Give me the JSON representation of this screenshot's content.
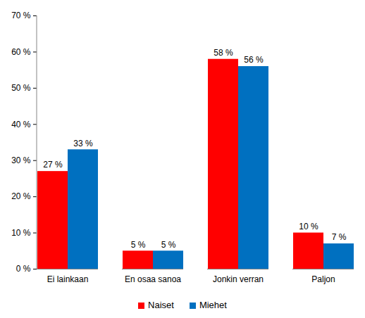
{
  "chart_data": {
    "type": "bar",
    "categories": [
      "Ei lainkaan",
      "En osaa sanoa",
      "Jonkin verran",
      "Paljon"
    ],
    "series": [
      {
        "name": "Naiset",
        "color": "#ff0000",
        "values": [
          27,
          5,
          58,
          10
        ],
        "value_labels": [
          "27 %",
          "5 %",
          "58 %",
          "10 %"
        ]
      },
      {
        "name": "Miehet",
        "color": "#0070c0",
        "values": [
          33,
          5,
          56,
          7
        ],
        "value_labels": [
          "33 %",
          "5 %",
          "56 %",
          "7 %"
        ]
      }
    ],
    "ylim": [
      0,
      70
    ],
    "yticks": [
      {
        "value": 0,
        "label": "0 %"
      },
      {
        "value": 10,
        "label": "10 %"
      },
      {
        "value": 20,
        "label": "20 %"
      },
      {
        "value": 30,
        "label": "30 %"
      },
      {
        "value": 40,
        "label": "40 %"
      },
      {
        "value": 50,
        "label": "50 %"
      },
      {
        "value": 60,
        "label": "60 %"
      },
      {
        "value": 70,
        "label": "70 %"
      }
    ],
    "grid": false,
    "legend": "bottom",
    "data_labels": true
  }
}
